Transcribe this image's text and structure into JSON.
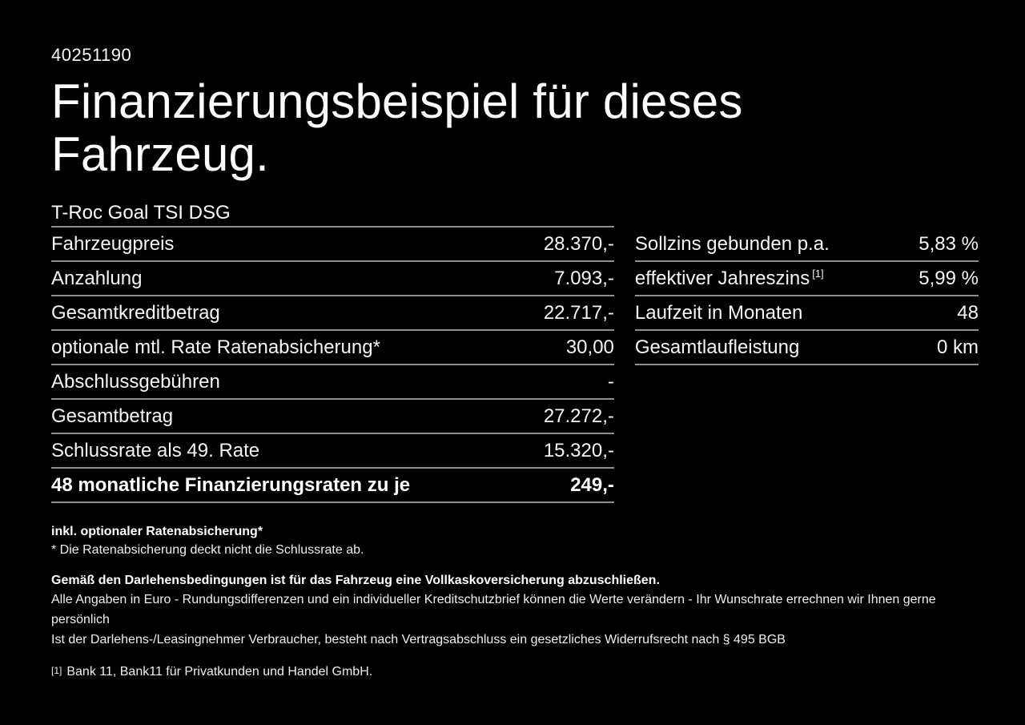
{
  "page": {
    "background_color": "#000000",
    "text_color": "#ffffff",
    "divider_color": "#8f8f8f"
  },
  "header": {
    "listing_id": "40251190",
    "title_line1": "Finanzierungsbeispiel für dieses",
    "title_line2": "Fahrzeug.",
    "vehicle_model": "T-Roc Goal TSI DSG"
  },
  "finance_table": {
    "rows": [
      {
        "label": "Fahrzeugpreis",
        "value": "28.370,-"
      },
      {
        "label": "Anzahlung",
        "value": "7.093,-"
      },
      {
        "label": "Gesamtkreditbetrag",
        "value": "22.717,-"
      },
      {
        "label": "optionale mtl. Rate Ratenabsicherung*",
        "value": "30,00"
      },
      {
        "label": "Abschlussgebühren",
        "value": "-"
      },
      {
        "label": "Gesamtbetrag",
        "value": "27.272,-"
      },
      {
        "label": "Schlussrate als 49. Rate",
        "value": "15.320,-"
      },
      {
        "label": "48 monatliche Finanzierungsraten zu je",
        "value": "249,-"
      }
    ]
  },
  "conditions_table": {
    "rows": [
      {
        "label": "Sollzins gebunden p.a.",
        "value": "5,83 %"
      },
      {
        "label": "effektiver Jahreszins",
        "superscript": "[1]",
        "value": "5,99 %"
      },
      {
        "label": "Laufzeit in Monaten",
        "value": "48"
      },
      {
        "label": "Gesamtlaufleistung",
        "value": "0 km"
      }
    ]
  },
  "footnotes": {
    "rate_protection_title": "inkl. optionaler Ratenabsicherung*",
    "rate_protection_note": "* Die Ratenabsicherung deckt nicht die Schlussrate ab.",
    "insurance_requirement": "Gemäß den Darlehensbedingungen ist für das Fahrzeug eine Vollkaskoversicherung abzuschließen.",
    "disclaimer_line1": "Alle Angaben in Euro - Rundungsdifferenzen und ein individueller Kreditschutzbrief können die Werte verändern - Ihr Wunschrate errechnen wir Ihnen gerne persönlich",
    "disclaimer_line2": "Ist der Darlehens-/Leasingnehmer Verbraucher, besteht nach Vertragsabschluss ein gesetzliches Widerrufsrecht nach § 495 BGB",
    "bank_ref_marker": "[1]",
    "bank_ref_text": "Bank 11, Bank11 für Privatkunden und Handel GmbH."
  }
}
